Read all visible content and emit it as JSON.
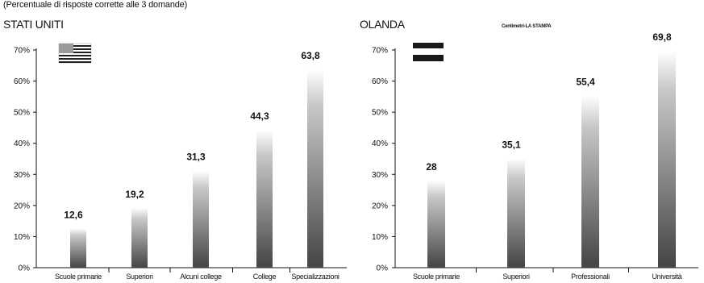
{
  "subtitle": "(Percentuale di risposte corrette alle 3 domande)",
  "credit": "Centimetri-LA STAMPA",
  "chart_data": [
    {
      "type": "bar",
      "title": "STATI UNITI",
      "categories": [
        "Scuole primarie",
        "Superiori",
        "Alcuni college",
        "College",
        "Specializzazioni"
      ],
      "values": [
        12.6,
        19.2,
        31.3,
        44.3,
        63.8
      ],
      "value_labels": [
        "12,6",
        "19,2",
        "31,3",
        "44,3",
        "63,8"
      ],
      "yticks": [
        "0%",
        "10%",
        "20%",
        "30%",
        "40%",
        "50%",
        "60%",
        "70%"
      ],
      "ylim": [
        0,
        70
      ],
      "grid": false,
      "flag": "usa-flag-icon",
      "bar_color": "#555555"
    },
    {
      "type": "bar",
      "title": "OLANDA",
      "categories": [
        "Scuole primarie",
        "Superiori",
        "Professionali",
        "Università"
      ],
      "values": [
        28,
        35.1,
        55.4,
        69.8
      ],
      "value_labels": [
        "28",
        "35,1",
        "55,4",
        "69,8"
      ],
      "yticks": [
        "0%",
        "10%",
        "20%",
        "30%",
        "40%",
        "50%",
        "60%",
        "70%"
      ],
      "ylim": [
        0,
        70
      ],
      "grid": false,
      "flag": "netherlands-flag-icon",
      "bar_color": "#555555"
    }
  ]
}
